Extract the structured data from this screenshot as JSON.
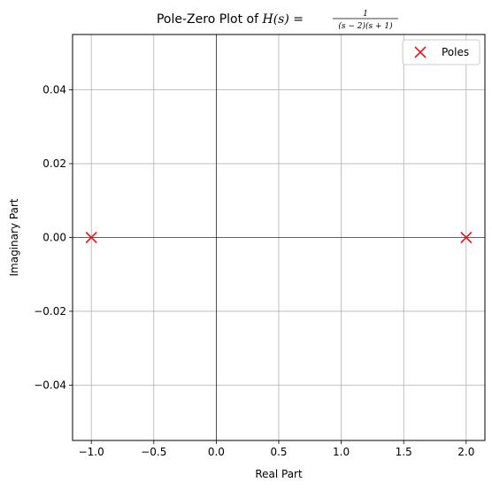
{
  "chart_data": {
    "type": "scatter",
    "title_prefix": "Pole-Zero Plot of ",
    "title_func": "H(s) = ",
    "title_frac_num": "1",
    "title_frac_den": "(s − 2)(s + 1)",
    "xlabel": "Real Part",
    "ylabel": "Imaginary Part",
    "xlim": [
      -1.15,
      2.15
    ],
    "ylim": [
      -0.055,
      0.055
    ],
    "xticks": [
      -1.0,
      -0.5,
      0.0,
      0.5,
      1.0,
      1.5,
      2.0
    ],
    "xtick_labels": [
      "−1.0",
      "−0.5",
      "0.0",
      "0.5",
      "1.0",
      "1.5",
      "2.0"
    ],
    "yticks": [
      -0.04,
      -0.02,
      0.0,
      0.02,
      0.04
    ],
    "ytick_labels": [
      "−0.04",
      "−0.02",
      "0.00",
      "0.02",
      "0.04"
    ],
    "grid": true,
    "legend_position": "top-right",
    "series": [
      {
        "name": "Poles",
        "marker": "x",
        "color": "#e31a1c",
        "points": [
          {
            "x": -1.0,
            "y": 0.0
          },
          {
            "x": 2.0,
            "y": 0.0
          }
        ]
      }
    ]
  }
}
